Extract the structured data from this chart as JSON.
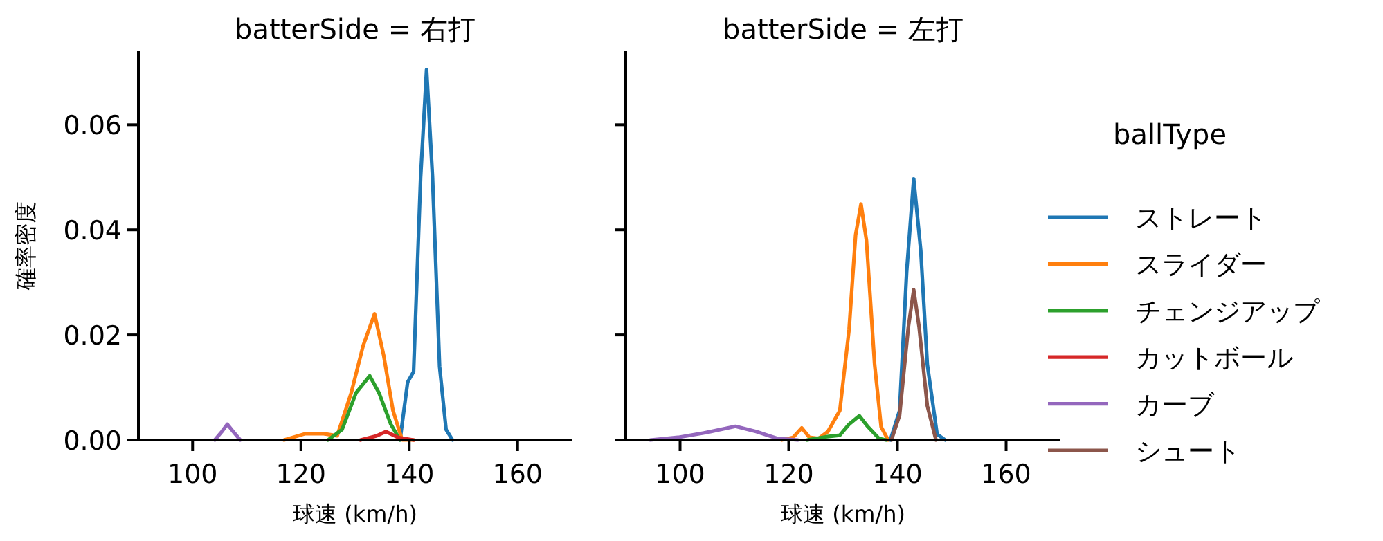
{
  "chart_data": [
    {
      "type": "line",
      "title": "batterSide = 右打",
      "xlabel": "球速 (km/h)",
      "ylabel": "確率密度",
      "xlim": [
        90,
        170
      ],
      "ylim": [
        0,
        0.074
      ],
      "xticks": [
        100,
        120,
        140,
        160
      ],
      "yticks": [
        {
          "value": 0,
          "label": "0.00"
        },
        {
          "value": 0.02,
          "label": "0.02"
        },
        {
          "value": 0.04,
          "label": "0.04"
        },
        {
          "value": 0.06,
          "label": "0.06"
        }
      ],
      "legend": false,
      "series": [
        {
          "name": "ストレート",
          "color": "#1f77b4",
          "x": [
            138.3,
            139.7,
            140.8,
            142.1,
            143.2,
            144.3,
            145.6,
            146.8,
            148.0
          ],
          "values": [
            0,
            0.011,
            0.013,
            0.05,
            0.0705,
            0.05,
            0.014,
            0.002,
            0
          ]
        },
        {
          "name": "スライダー",
          "color": "#ff7f0e",
          "x": [
            116.9,
            120.8,
            124.2,
            126.7,
            129.3,
            131.5,
            133.6,
            135.3,
            137.0,
            138.7,
            140.8
          ],
          "values": [
            0,
            0.0012,
            0.0012,
            0.0008,
            0.009,
            0.018,
            0.024,
            0.016,
            0.0056,
            0,
            0
          ]
        },
        {
          "name": "チェンジアップ",
          "color": "#2ca02c",
          "x": [
            125.0,
            127.6,
            130.2,
            132.7,
            134.4,
            136.6,
            138.3
          ],
          "values": [
            0,
            0.002,
            0.009,
            0.0122,
            0.009,
            0.003,
            0
          ]
        },
        {
          "name": "カットボール",
          "color": "#d62728",
          "x": [
            131.0,
            134.0,
            135.7,
            137.9,
            140.8
          ],
          "values": [
            0,
            0.0008,
            0.0016,
            0.0005,
            0
          ]
        },
        {
          "name": "カーブ",
          "color": "#9467bd",
          "x": [
            104.1,
            105.4,
            106.4,
            107.5,
            108.8
          ],
          "values": [
            0,
            0.0016,
            0.003,
            0.0016,
            0
          ]
        }
      ]
    },
    {
      "type": "line",
      "title": "batterSide = 左打",
      "xlabel": "球速 (km/h)",
      "xlim": [
        90,
        170
      ],
      "ylim": [
        0,
        0.074
      ],
      "xticks": [
        100,
        120,
        140,
        160
      ],
      "yticks": [
        {
          "value": 0,
          "label": null
        },
        {
          "value": 0.02,
          "label": null
        },
        {
          "value": 0.04,
          "label": null
        },
        {
          "value": 0.06,
          "label": null
        }
      ],
      "tick_labels": "x",
      "legend": "right",
      "legend_title": "ballType",
      "series": [
        {
          "color": "#1f77b4",
          "x": [
            138.7,
            140.4,
            141.7,
            143.0,
            144.3,
            145.5,
            147.3,
            148.8
          ],
          "values": [
            0,
            0.0056,
            0.032,
            0.0497,
            0.036,
            0.0144,
            0.0011,
            0
          ]
        },
        {
          "color": "#ff7f0e",
          "x": [
            118.7,
            120.8,
            122.4,
            123.8,
            125.5,
            127.2,
            129.4,
            131.1,
            132.3,
            133.3,
            134.3,
            135.8,
            137.0,
            138.3
          ],
          "values": [
            0,
            0.0005,
            0.0023,
            0.0005,
            0.0003,
            0.0016,
            0.0056,
            0.021,
            0.039,
            0.0449,
            0.038,
            0.0144,
            0.0025,
            0
          ]
        },
        {
          "color": "#2ca02c",
          "x": [
            123.4,
            126.8,
            129.4,
            131.1,
            133.0,
            134.6,
            136.6,
            137.9
          ],
          "values": [
            0,
            0.0006,
            0.0009,
            0.003,
            0.0046,
            0.0025,
            0.0003,
            0
          ]
        },
        {
          "color": "#9467bd",
          "x": [
            94.5,
            99.6,
            104.7,
            110.2,
            114.0,
            117.9,
            121.7
          ],
          "values": [
            0,
            0.0005,
            0.0014,
            0.0026,
            0.0016,
            0.0003,
            0
          ]
        },
        {
          "name": "シュート",
          "color": "#8c564b",
          "x": [
            138.9,
            140.4,
            142.0,
            143.0,
            144.0,
            145.5,
            147.1
          ],
          "values": [
            0,
            0.0047,
            0.0214,
            0.0286,
            0.0214,
            0.0065,
            0
          ]
        }
      ]
    }
  ]
}
